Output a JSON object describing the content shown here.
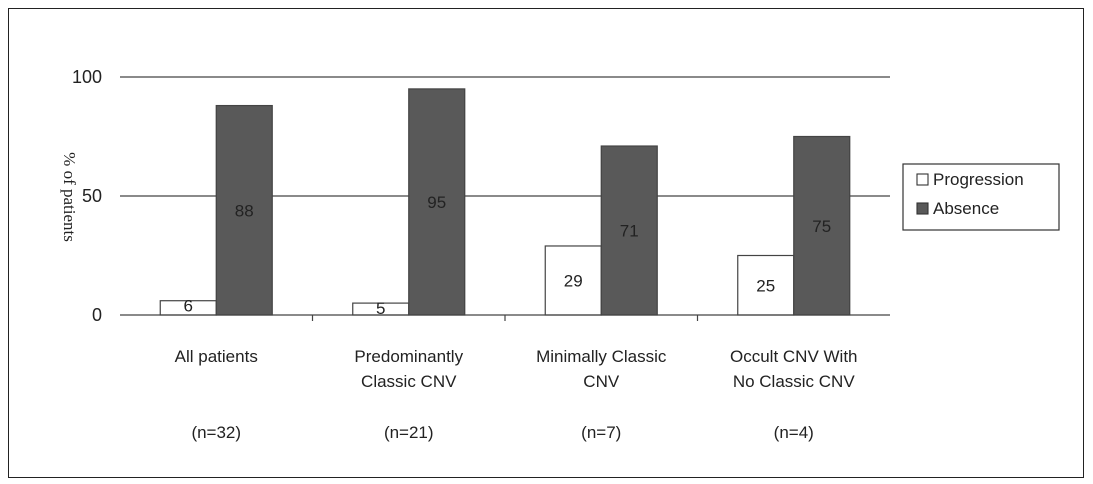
{
  "chart_data": {
    "type": "bar",
    "title": "",
    "ylabel": "% of patients",
    "xlabel": "",
    "ylim": [
      0,
      100
    ],
    "yticks": [
      0,
      50,
      100
    ],
    "grid": true,
    "legend_position": "right",
    "categories": [
      {
        "lines": [
          "All patients"
        ],
        "n": "(n=32)"
      },
      {
        "lines": [
          "Predominantly",
          "Classic CNV"
        ],
        "n": "(n=21)"
      },
      {
        "lines": [
          "Minimally Classic",
          "CNV"
        ],
        "n": "(n=7)"
      },
      {
        "lines": [
          "Occult CNV With",
          "No Classic CNV"
        ],
        "n": "(n=4)"
      }
    ],
    "series": [
      {
        "name": "Progression",
        "color": "#ffffff",
        "values": [
          6,
          5,
          29,
          25
        ]
      },
      {
        "name": "Absence",
        "color": "#595959",
        "values": [
          88,
          95,
          71,
          75
        ]
      }
    ]
  }
}
